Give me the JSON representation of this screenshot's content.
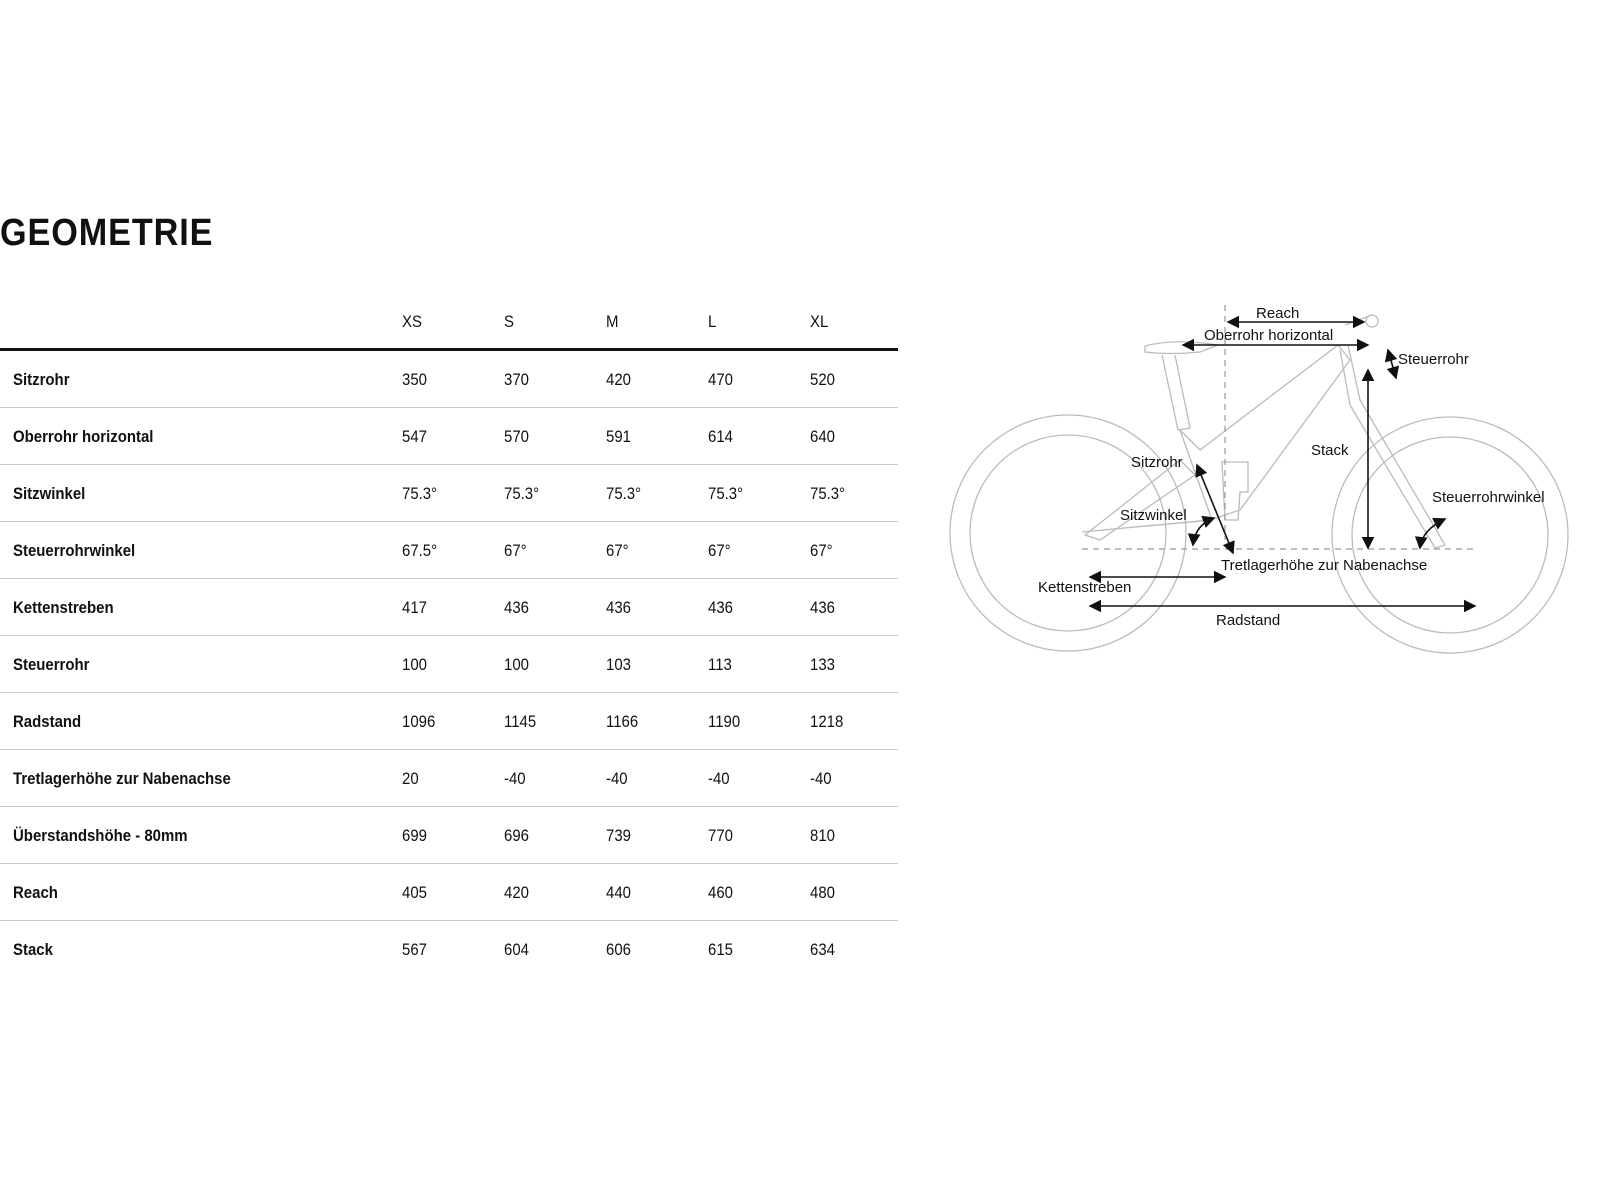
{
  "title": "GEOMETRIE",
  "table": {
    "columns": [
      "XS",
      "S",
      "M",
      "L",
      "XL"
    ],
    "rows": [
      {
        "label": "Sitzrohr",
        "values": [
          "350",
          "370",
          "420",
          "470",
          "520"
        ]
      },
      {
        "label": "Oberrohr horizontal",
        "values": [
          "547",
          "570",
          "591",
          "614",
          "640"
        ]
      },
      {
        "label": "Sitzwinkel",
        "values": [
          "75.3°",
          "75.3°",
          "75.3°",
          "75.3°",
          "75.3°"
        ]
      },
      {
        "label": "Steuerrohrwinkel",
        "values": [
          "67.5°",
          "67°",
          "67°",
          "67°",
          "67°"
        ]
      },
      {
        "label": "Kettenstreben",
        "values": [
          "417",
          "436",
          "436",
          "436",
          "436"
        ]
      },
      {
        "label": "Steuerrohr",
        "values": [
          "100",
          "100",
          "103",
          "113",
          "133"
        ]
      },
      {
        "label": "Radstand",
        "values": [
          "1096",
          "1145",
          "1166",
          "1190",
          "1218"
        ]
      },
      {
        "label": "Tretlagerhöhe zur Nabenachse",
        "values": [
          "20",
          "-40",
          "-40",
          "-40",
          "-40"
        ]
      },
      {
        "label": "Überstandshöhe - 80mm",
        "values": [
          "699",
          "696",
          "739",
          "770",
          "810"
        ]
      },
      {
        "label": "Reach",
        "values": [
          "405",
          "420",
          "440",
          "460",
          "480"
        ]
      },
      {
        "label": "Stack",
        "values": [
          "567",
          "604",
          "606",
          "615",
          "634"
        ]
      }
    ]
  },
  "diagram": {
    "labels": {
      "reach": "Reach",
      "top_tube": "Oberrohr horizontal",
      "head_tube": "Steuerrohr",
      "stack": "Stack",
      "seat_tube": "Sitzrohr",
      "seat_angle": "Sitzwinkel",
      "head_angle": "Steuerrohrwinkel",
      "bb_drop": "Tretlagerhöhe zur Nabenachse",
      "chainstay": "Kettenstreben",
      "wheelbase": "Radstand"
    }
  }
}
